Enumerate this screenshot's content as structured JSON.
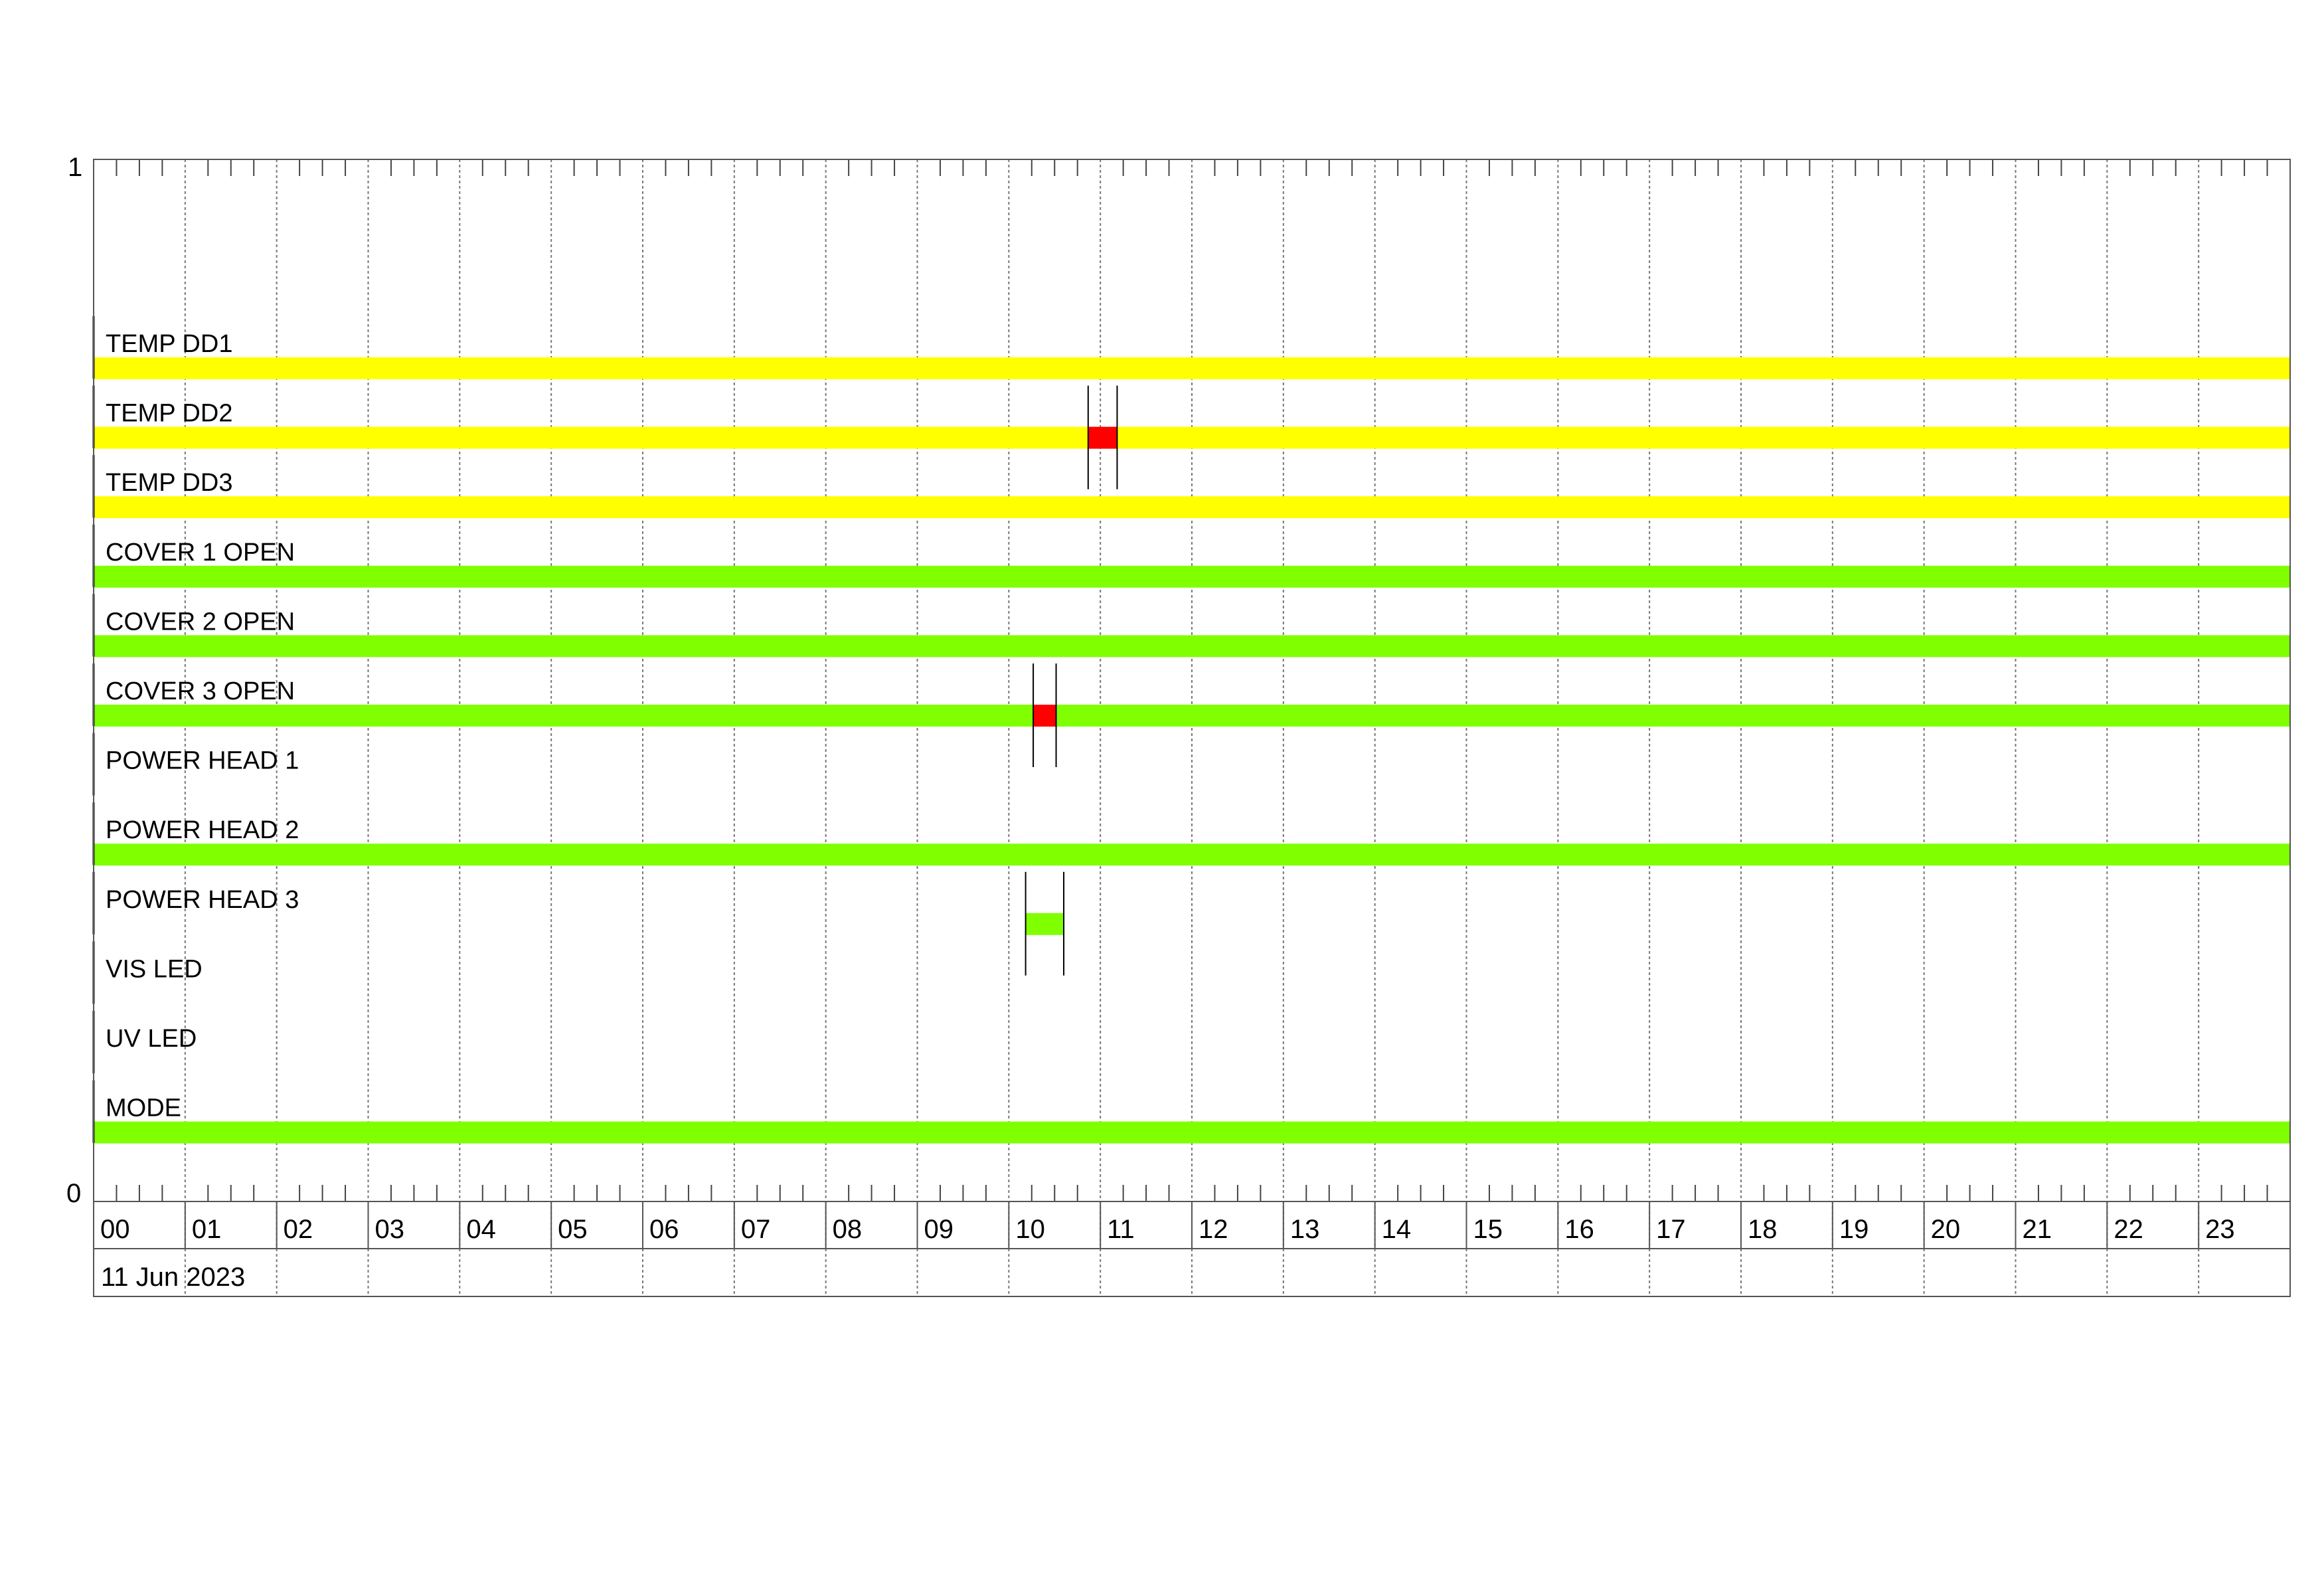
{
  "chart_data": {
    "type": "timeline",
    "date_label": "11 Jun 2023",
    "y_axis": {
      "top_label": "1",
      "bottom_label": "0"
    },
    "x_ticks": [
      "00",
      "01",
      "02",
      "03",
      "04",
      "05",
      "06",
      "07",
      "08",
      "09",
      "10",
      "11",
      "12",
      "13",
      "14",
      "15",
      "16",
      "17",
      "18",
      "19",
      "20",
      "21",
      "22",
      "23"
    ],
    "xlim_hours": [
      0,
      24
    ],
    "grid": true,
    "colors": {
      "ok_yellow": "#ffff00",
      "ok_green": "#80ff00",
      "alarm_red": "#ff0000"
    },
    "rows": [
      {
        "label": "TEMP DD1",
        "segments": [
          {
            "start": "00:00",
            "end": "24:00",
            "color": "#ffff00"
          }
        ]
      },
      {
        "label": "TEMP DD2",
        "segments": [
          {
            "start": "00:00",
            "end": "10:52",
            "color": "#ffff00"
          },
          {
            "start": "10:52",
            "end": "11:11",
            "color": "#ff0000"
          },
          {
            "start": "11:11",
            "end": "24:00",
            "color": "#ffff00"
          }
        ],
        "markers": [
          "10:52",
          "11:11"
        ]
      },
      {
        "label": "TEMP DD3",
        "segments": [
          {
            "start": "00:00",
            "end": "24:00",
            "color": "#ffff00"
          }
        ]
      },
      {
        "label": "COVER 1 OPEN",
        "segments": [
          {
            "start": "00:00",
            "end": "24:00",
            "color": "#80ff00"
          }
        ]
      },
      {
        "label": "COVER 2 OPEN",
        "segments": [
          {
            "start": "00:00",
            "end": "24:00",
            "color": "#80ff00"
          }
        ]
      },
      {
        "label": "COVER 3 OPEN",
        "segments": [
          {
            "start": "00:00",
            "end": "10:16",
            "color": "#80ff00"
          },
          {
            "start": "10:16",
            "end": "10:31",
            "color": "#ff0000"
          },
          {
            "start": "10:31",
            "end": "24:00",
            "color": "#80ff00"
          }
        ],
        "markers": [
          "10:16",
          "10:31"
        ]
      },
      {
        "label": "POWER HEAD 1",
        "segments": []
      },
      {
        "label": "POWER HEAD 2",
        "segments": [
          {
            "start": "00:00",
            "end": "24:00",
            "color": "#80ff00"
          }
        ]
      },
      {
        "label": "POWER HEAD 3",
        "segments": [
          {
            "start": "10:11",
            "end": "10:36",
            "color": "#80ff00"
          }
        ],
        "markers": [
          "10:11",
          "10:36"
        ]
      },
      {
        "label": "VIS LED",
        "segments": []
      },
      {
        "label": "UV LED",
        "segments": []
      },
      {
        "label": "MODE",
        "segments": [
          {
            "start": "00:00",
            "end": "24:00",
            "color": "#80ff00"
          }
        ]
      }
    ]
  }
}
